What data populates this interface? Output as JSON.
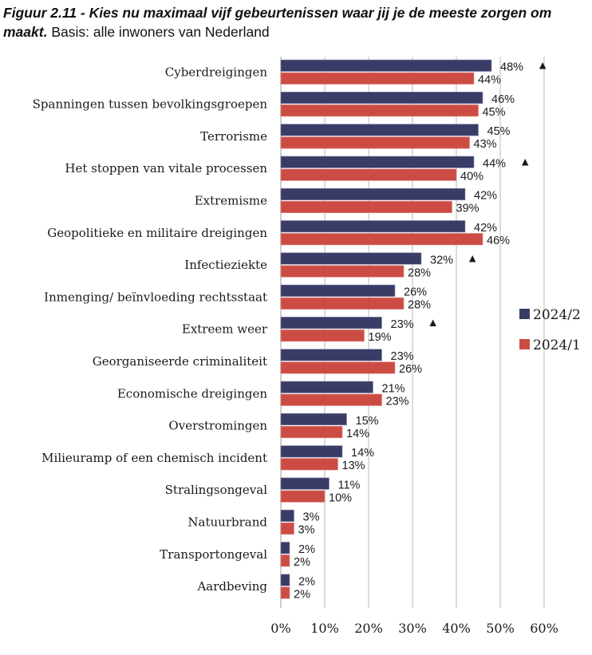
{
  "title": {
    "bold": "Figuur 2.11 - Kies nu maximaal vijf gebeurtenissen waar jij je de meeste zorgen om maakt.",
    "normal": " Basis: alle inwoners van Nederland"
  },
  "chart_data": {
    "type": "bar",
    "orientation": "horizontal",
    "title": "Figuur 2.11 - Kies nu maximaal vijf gebeurtenissen waar jij je de meeste zorgen om maakt. Basis: alle inwoners van Nederland",
    "xlabel": "",
    "ylabel": "",
    "xlim": [
      0,
      60
    ],
    "x_ticks": [
      "0%",
      "10%",
      "20%",
      "30%",
      "40%",
      "50%",
      "60%"
    ],
    "grid": true,
    "legend_position": "right",
    "categories": [
      "Cyberdreigingen",
      "Spanningen tussen bevolkingsgroepen",
      "Terrorisme",
      "Het stoppen van vitale processen",
      "Extremisme",
      "Geopolitieke en militaire dreigingen",
      "Infectieziekte",
      "Inmenging/ beïnvloeding rechtsstaat",
      "Extreem weer",
      "Georganiseerde criminaliteit",
      "Economische dreigingen",
      "Overstromingen",
      "Milieuramp of een chemisch incident",
      "Stralingsongeval",
      "Natuurbrand",
      "Transportongeval",
      "Aardbeving"
    ],
    "series": [
      {
        "name": "2024/2",
        "color": "#383c66",
        "values": [
          48,
          46,
          45,
          44,
          42,
          42,
          32,
          26,
          23,
          23,
          21,
          15,
          14,
          11,
          3,
          2,
          2
        ],
        "significant_increase": [
          true,
          false,
          false,
          true,
          false,
          false,
          true,
          false,
          true,
          false,
          false,
          false,
          false,
          false,
          false,
          false,
          false
        ]
      },
      {
        "name": "2024/1",
        "color": "#cc4c44",
        "values": [
          44,
          45,
          43,
          40,
          39,
          46,
          28,
          28,
          19,
          26,
          23,
          14,
          13,
          10,
          3,
          2,
          2
        ]
      }
    ],
    "value_suffix": "%",
    "annotation_marker": "▲"
  }
}
